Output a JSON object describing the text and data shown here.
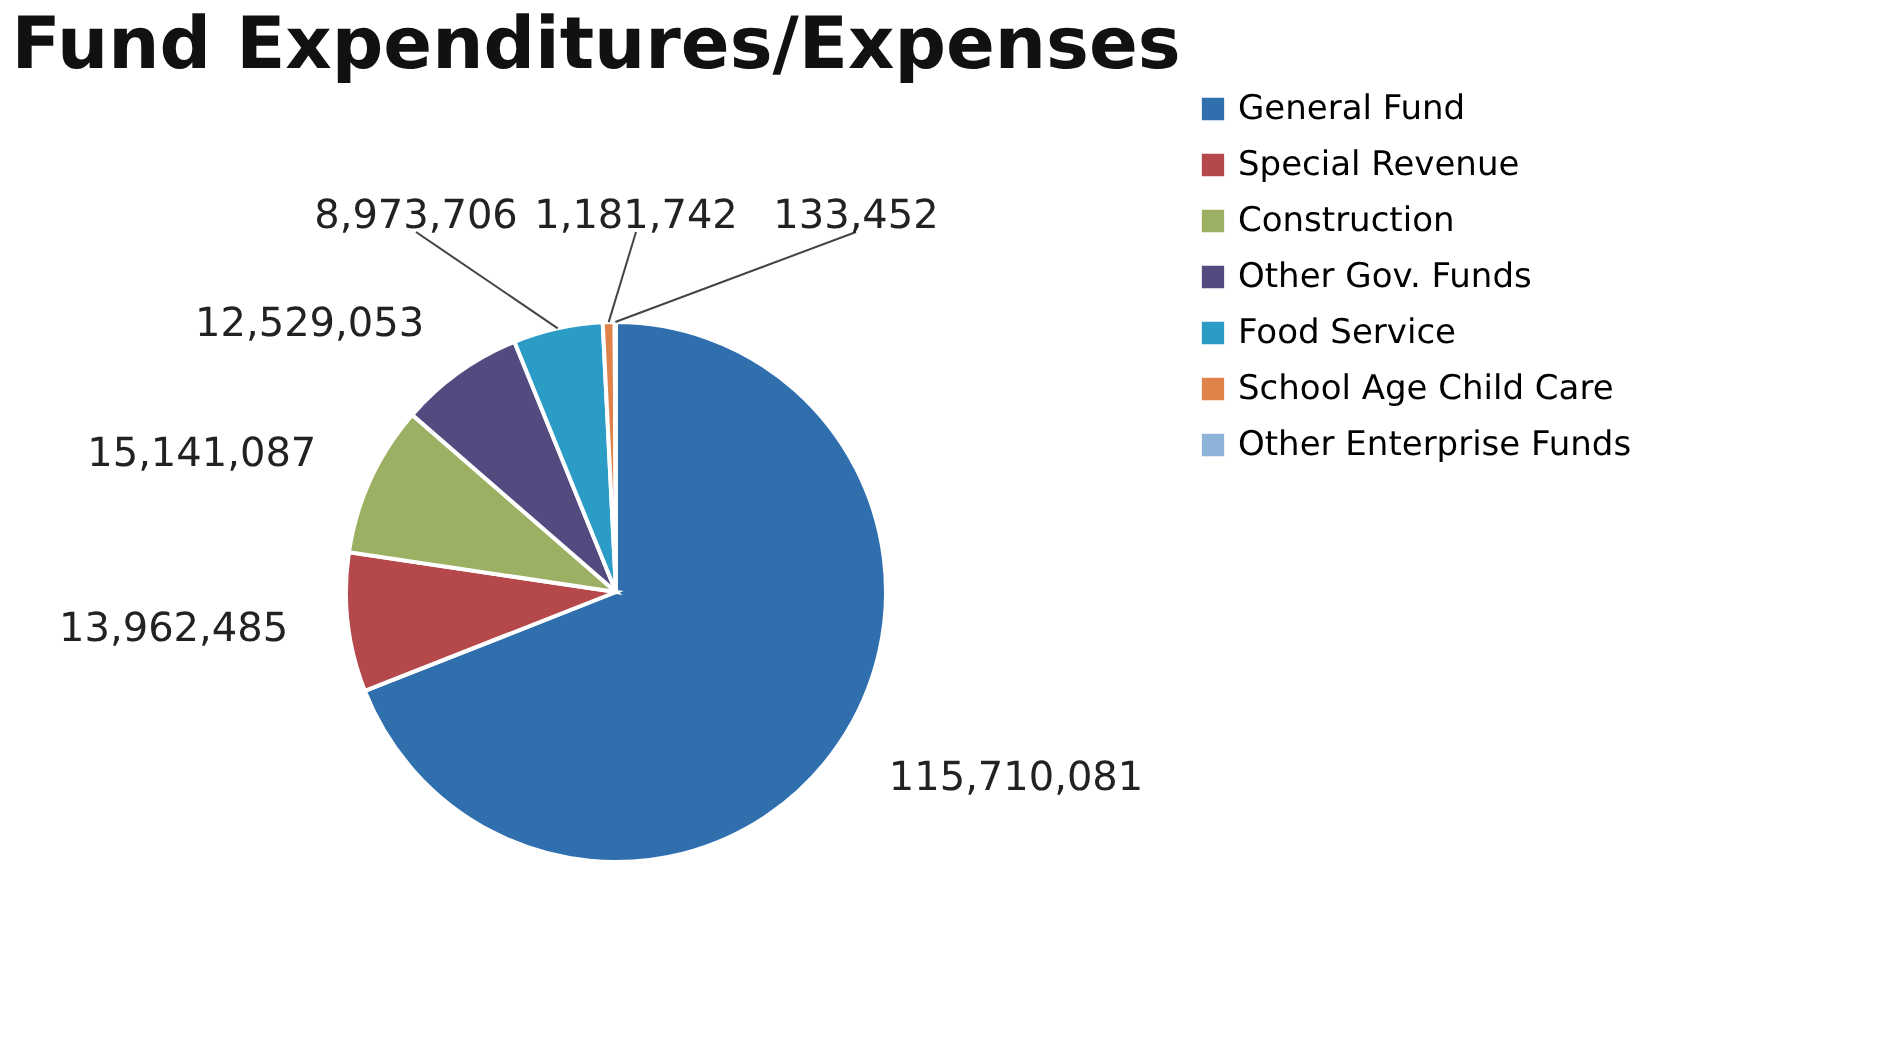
{
  "chart_data": {
    "type": "pie",
    "title": "Fund Expenditures/Expenses",
    "categories": [
      "General Fund",
      "Special Revenue",
      "Construction",
      "Other Gov. Funds",
      "Food Service",
      "School Age Child Care",
      "Other Enterprise Funds"
    ],
    "values": [
      115710081,
      13962485,
      15141087,
      12529053,
      8973706,
      1181742,
      133452
    ],
    "colors": [
      "#2f6fad",
      "#b5484a",
      "#9bb062",
      "#524b80",
      "#2a9cc6",
      "#e0834a",
      "#8fb2d9"
    ],
    "value_labels": [
      "115,710,081",
      "13,962,485",
      "15,141,087",
      "12,529,053",
      "8,973,706",
      "1,181,742",
      "133,452"
    ],
    "legend": "right"
  }
}
